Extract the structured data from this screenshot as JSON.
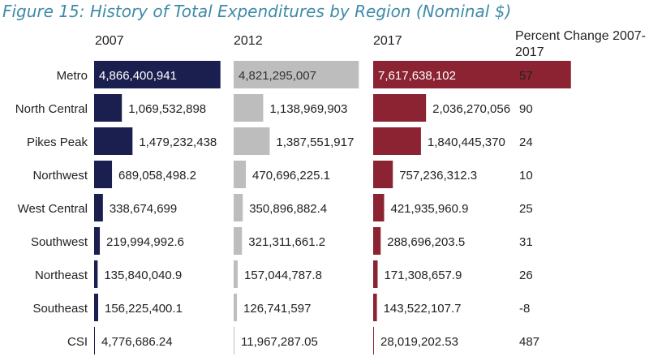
{
  "title": "Figure 15: History of Total Expenditures by Region (Nominal $)",
  "colors": {
    "title": "#3f8aa9",
    "y2007": "#1b1f4f",
    "y2012": "#bdbdbd",
    "y2017": "#8b2332",
    "text": "#222222",
    "inside_label_light": "#ffffff",
    "inside_label_dark": "#333333"
  },
  "chart_data": {
    "type": "bar",
    "orientation": "horizontal",
    "title": "Figure 15: History of Total Expenditures by Region (Nominal $)",
    "categories": [
      "Metro",
      "North Central",
      "Pikes Peak",
      "Northwest",
      "West Central",
      "Southwest",
      "Northeast",
      "Southeast",
      "CSI"
    ],
    "series": [
      {
        "name": "2007",
        "values": [
          4866400941,
          1069532898,
          1479232438,
          689058498.2,
          338674699,
          219994992.6,
          135840040.9,
          156225400.1,
          4776686.24
        ],
        "labels": [
          "4,866,400,941",
          "1,069,532,898",
          "1,479,232,438",
          "689,058,498.2",
          "338,674,699",
          "219,994,992.6",
          "135,840,040.9",
          "156,225,400.1",
          "4,776,686.24"
        ]
      },
      {
        "name": "2012",
        "values": [
          4821295007,
          1138969903,
          1387551917,
          470696225.1,
          350896882.4,
          321311661.2,
          157044787.8,
          126741597,
          11967287.05
        ],
        "labels": [
          "4,821,295,007",
          "1,138,969,903",
          "1,387,551,917",
          "470,696,225.1",
          "350,896,882.4",
          "321,311,661.2",
          "157,044,787.8",
          "126,741,597",
          "11,967,287.05"
        ]
      },
      {
        "name": "2017",
        "values": [
          7617638102,
          2036270056,
          1840445370,
          757236312.3,
          421935960.9,
          288696203.5,
          171308657.9,
          143522107.7,
          28019202.53
        ],
        "labels": [
          "7,617,638,102",
          "2,036,270,056",
          "1,840,445,370",
          "757,236,312.3",
          "421,935,960.9",
          "288,696,203.5",
          "171,308,657.9",
          "143,522,107.7",
          "28,019,202.53"
        ]
      }
    ],
    "percent_change": {
      "header": "Percent Change 2007-2017",
      "values": [
        57,
        90,
        24,
        10,
        25,
        31,
        26,
        -8,
        487
      ]
    },
    "legend": "none",
    "grid": false
  }
}
